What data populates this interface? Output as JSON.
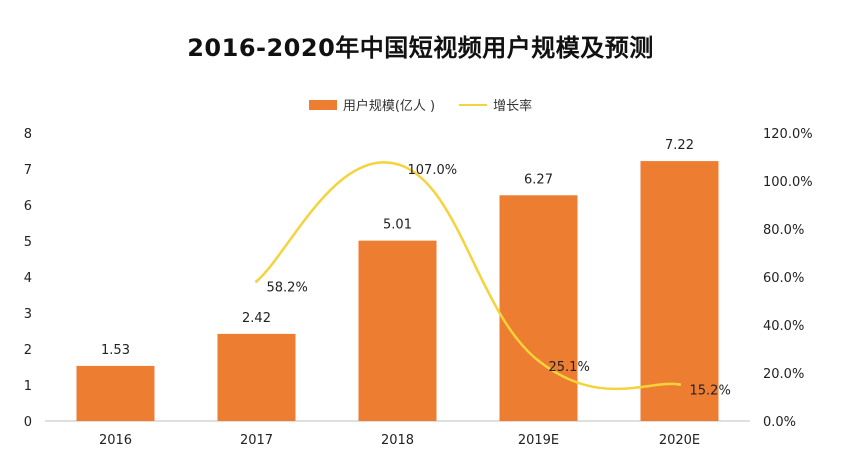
{
  "chart_data": {
    "type": "bar",
    "title": "2016-2020年中国短视频用户规模及预测",
    "categories": [
      "2016",
      "2017",
      "2018",
      "2019E",
      "2020E"
    ],
    "series": [
      {
        "name": "用户规模(亿人 )",
        "type": "bar",
        "axis": "left",
        "values": [
          1.53,
          2.42,
          5.01,
          6.27,
          7.22
        ],
        "labels": [
          "1.53",
          "2.42",
          "5.01",
          "6.27",
          "7.22"
        ],
        "color": "#ED7D31"
      },
      {
        "name": "增长率",
        "type": "line",
        "axis": "right",
        "values": [
          null,
          58.2,
          107.0,
          25.1,
          15.2
        ],
        "labels": [
          "",
          "58.2%",
          "107.0%",
          "25.1%",
          "15.2%"
        ],
        "color": "#F5D33C"
      }
    ],
    "y_left": {
      "ylim": [
        0,
        8
      ],
      "ticks": [
        "0",
        "1",
        "2",
        "3",
        "4",
        "5",
        "6",
        "7",
        "8"
      ]
    },
    "y_right": {
      "ylim": [
        0,
        120
      ],
      "ticks": [
        "0.0%",
        "20.0%",
        "40.0%",
        "60.0%",
        "80.0%",
        "100.0%",
        "120.0%"
      ]
    },
    "grid": false,
    "legend_position": "top"
  }
}
